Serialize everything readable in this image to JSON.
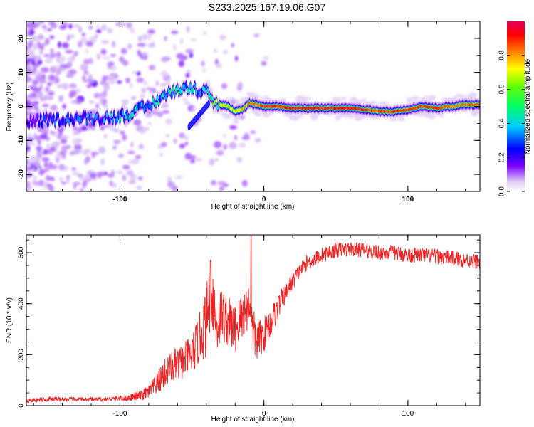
{
  "title": "S233.2025.167.19.06.G07",
  "colors": {
    "spectrum_low": "#ffffff",
    "spectrum_high": "#e0004a",
    "snr_line": "#ee2222",
    "axis": "#000000"
  },
  "chart_data": [
    {
      "type": "heatmap",
      "title": "",
      "xlabel": "Height of straight line (km)",
      "ylabel": "Frequency (Hz)",
      "xlim": [
        -165,
        150
      ],
      "ylim": [
        -25,
        25
      ],
      "xticks": [
        -100,
        0,
        100
      ],
      "yticks": [
        -20,
        -10,
        0,
        10,
        20
      ],
      "grid": false,
      "colorbar": {
        "label": "Normalized spectral amplitude",
        "range": [
          0.0,
          1.0
        ],
        "ticks": [
          "0.0",
          "0.2",
          "0.4",
          "0.6",
          "0.8"
        ],
        "colormap": "rainbow"
      },
      "ridge": {
        "description_free": true,
        "x": [
          -165,
          -150,
          -130,
          -115,
          -100,
          -90,
          -80,
          -70,
          -60,
          -50,
          -45,
          -40,
          -35,
          -30,
          -25,
          -20,
          -15,
          -10,
          -5,
          0,
          10,
          20,
          40,
          60,
          70,
          80,
          90,
          100,
          110,
          120,
          130,
          140,
          150
        ],
        "freq": [
          -4.5,
          -4,
          -3.5,
          -3.5,
          -3,
          -1.5,
          0,
          3,
          5,
          5.5,
          4.5,
          6,
          1,
          0.5,
          0,
          -1.5,
          -1,
          1,
          0.5,
          0,
          0,
          -0.5,
          -0.5,
          -0.5,
          -1,
          -1.5,
          -1.5,
          -1,
          0,
          -0.5,
          0,
          0.5,
          0.5
        ],
        "amplitude": [
          0.15,
          0.3,
          0.3,
          0.3,
          0.4,
          0.4,
          0.4,
          0.45,
          0.5,
          0.45,
          0.3,
          0.4,
          0.5,
          0.75,
          0.7,
          0.7,
          0.8,
          0.85,
          0.85,
          0.9,
          0.9,
          0.95,
          0.95,
          0.95,
          0.9,
          0.9,
          0.9,
          0.9,
          0.9,
          0.9,
          0.85,
          0.85,
          0.9
        ]
      }
    },
    {
      "type": "line",
      "title": "",
      "xlabel": "Height of straight line (km)",
      "ylabel": "SNR (10 * v/v)",
      "xlim": [
        -165,
        150
      ],
      "ylim": [
        0,
        670
      ],
      "xticks": [
        -100,
        0,
        100
      ],
      "yticks": [
        0,
        200,
        400,
        600
      ],
      "grid": false,
      "series": [
        {
          "color": "#ee2222",
          "x": [
            -165,
            -150,
            -130,
            -110,
            -95,
            -85,
            -80,
            -75,
            -70,
            -65,
            -60,
            -55,
            -50,
            -45,
            -40,
            -37,
            -35,
            -33,
            -30,
            -25,
            -20,
            -15,
            -10,
            -8,
            -5,
            0,
            5,
            10,
            15,
            20,
            25,
            30,
            40,
            50,
            60,
            70,
            80,
            90,
            100,
            110,
            120,
            130,
            140,
            150
          ],
          "values": [
            20,
            25,
            25,
            25,
            30,
            40,
            55,
            80,
            120,
            150,
            160,
            180,
            200,
            260,
            330,
            450,
            420,
            300,
            360,
            330,
            300,
            350,
            400,
            300,
            250,
            280,
            330,
            390,
            440,
            490,
            530,
            560,
            590,
            610,
            615,
            610,
            600,
            600,
            590,
            590,
            585,
            580,
            570,
            565
          ],
          "noise": [
            8,
            10,
            8,
            8,
            12,
            20,
            30,
            40,
            60,
            60,
            70,
            70,
            80,
            100,
            140,
            150,
            140,
            120,
            110,
            100,
            100,
            100,
            90,
            100,
            80,
            70,
            60,
            50,
            40,
            35,
            30,
            30,
            30,
            30,
            30,
            30,
            30,
            30,
            30,
            30,
            30,
            30,
            30,
            30
          ]
        }
      ]
    }
  ]
}
